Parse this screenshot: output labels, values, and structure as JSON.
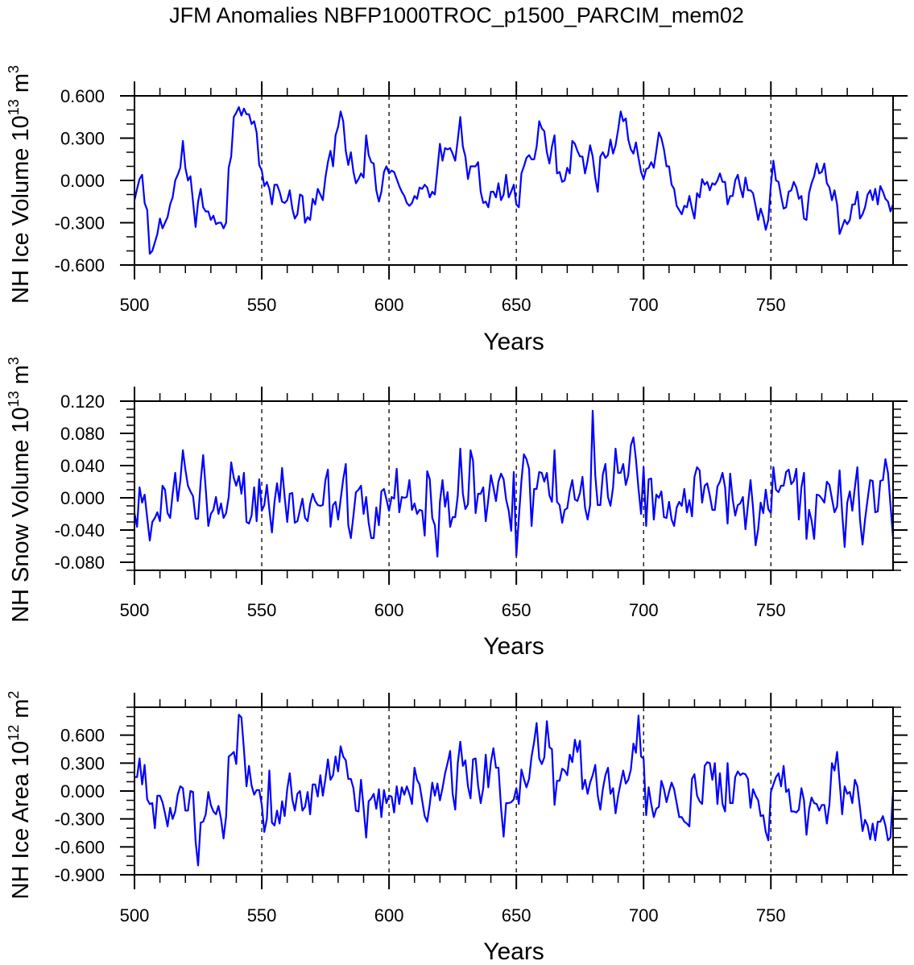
{
  "title": "JFM Anomalies NBFP1000TROC_p1500_PARCIM_mem02",
  "colors": {
    "line": "#0000ff",
    "axis": "#000000",
    "refline": "#000000"
  },
  "chart_data": [
    {
      "type": "line",
      "ylabel": {
        "text": "NH Ice Volume 10",
        "exp": "13",
        "unit": " m",
        "unit_exp": "3"
      },
      "xlabel": "Years",
      "xlim": [
        500,
        798
      ],
      "ylim": [
        -0.6,
        0.6
      ],
      "x_ticks": [
        500,
        550,
        600,
        650,
        700,
        750
      ],
      "x_tick_labels": [
        "500",
        "550",
        "600",
        "650",
        "700",
        "750"
      ],
      "y_ticks": [
        -0.6,
        -0.3,
        0.0,
        0.3,
        0.6
      ],
      "y_tick_labels": [
        "-0.600",
        "-0.300",
        "0.000",
        "0.300",
        "0.600"
      ],
      "y_minor_step": 0.1,
      "reference_lines_x": [
        550,
        600,
        650,
        700,
        750
      ],
      "x_start": 500,
      "values": [
        -0.14,
        -0.06,
        0.01,
        0.04,
        -0.16,
        -0.21,
        -0.52,
        -0.5,
        -0.44,
        -0.38,
        -0.27,
        -0.34,
        -0.3,
        -0.26,
        -0.17,
        -0.12,
        0.0,
        0.04,
        0.09,
        0.28,
        0.09,
        0.0,
        0.03,
        -0.15,
        -0.33,
        -0.15,
        -0.06,
        -0.19,
        -0.22,
        -0.22,
        -0.28,
        -0.25,
        -0.31,
        -0.3,
        -0.3,
        -0.34,
        -0.3,
        0.09,
        0.17,
        0.45,
        0.48,
        0.52,
        0.46,
        0.51,
        0.47,
        0.47,
        0.4,
        0.42,
        0.34,
        0.11,
        0.07,
        -0.04,
        -0.01,
        -0.06,
        -0.17,
        -0.03,
        -0.03,
        -0.08,
        -0.15,
        -0.16,
        -0.14,
        -0.07,
        -0.2,
        -0.27,
        -0.24,
        -0.1,
        -0.11,
        -0.3,
        -0.26,
        -0.28,
        -0.13,
        -0.17,
        -0.06,
        -0.1,
        -0.14,
        0.02,
        0.13,
        0.21,
        0.1,
        0.32,
        0.38,
        0.49,
        0.42,
        0.21,
        0.11,
        0.2,
        0.06,
        -0.02,
        0.01,
        0.05,
        0.02,
        0.32,
        0.18,
        0.13,
        0.12,
        -0.07,
        -0.15,
        -0.08,
        0.06,
        0.1,
        0.05,
        0.07,
        0.06,
        0.01,
        -0.04,
        -0.08,
        -0.11,
        -0.16,
        -0.18,
        -0.16,
        -0.11,
        -0.13,
        -0.05,
        -0.06,
        -0.03,
        -0.05,
        -0.12,
        -0.08,
        -0.1,
        0.08,
        0.26,
        0.14,
        0.23,
        0.22,
        0.23,
        0.19,
        0.14,
        0.29,
        0.45,
        0.24,
        0.17,
        0.01,
        0.1,
        0.1,
        0.1,
        0.13,
        -0.08,
        -0.16,
        -0.15,
        -0.19,
        -0.08,
        -0.08,
        -0.12,
        -0.02,
        -0.14,
        -0.1,
        0.04,
        -0.12,
        -0.08,
        -0.03,
        -0.17,
        -0.19,
        0.05,
        0.1,
        0.16,
        0.18,
        0.15,
        0.15,
        0.24,
        0.42,
        0.37,
        0.35,
        0.2,
        0.12,
        0.24,
        0.32,
        0.05,
        0.06,
        -0.01,
        0.0,
        0.09,
        0.05,
        0.28,
        0.26,
        0.21,
        0.17,
        0.17,
        0.05,
        0.14,
        0.25,
        0.17,
        0.02,
        -0.08,
        0.17,
        0.2,
        0.16,
        0.18,
        0.29,
        0.19,
        0.25,
        0.36,
        0.49,
        0.42,
        0.44,
        0.29,
        0.22,
        0.19,
        0.27,
        0.16,
        0.06,
        0.01,
        0.08,
        0.09,
        0.13,
        0.09,
        0.21,
        0.34,
        0.3,
        0.22,
        0.1,
        0.1,
        -0.03,
        -0.06,
        -0.18,
        -0.21,
        -0.24,
        -0.18,
        -0.19,
        -0.11,
        -0.2,
        -0.27,
        -0.09,
        -0.12,
        0.01,
        -0.03,
        -0.01,
        -0.07,
        -0.02,
        -0.03,
        0.0,
        0.05,
        -0.01,
        -0.01,
        -0.17,
        -0.11,
        -0.11,
        0.0,
        0.04,
        -0.05,
        -0.12,
        0.02,
        -0.07,
        -0.07,
        -0.09,
        -0.18,
        -0.28,
        -0.2,
        -0.26,
        -0.35,
        -0.28,
        -0.03,
        0.14,
        0.0,
        -0.01,
        -0.11,
        -0.2,
        -0.19,
        -0.08,
        -0.07,
        -0.01,
        -0.05,
        -0.13,
        -0.11,
        -0.27,
        -0.28,
        -0.09,
        -0.02,
        0.03,
        0.12,
        0.05,
        0.06,
        0.12,
        -0.02,
        -0.05,
        -0.14,
        -0.07,
        -0.17,
        -0.38,
        -0.33,
        -0.28,
        -0.31,
        -0.28,
        -0.17,
        -0.17,
        -0.08,
        -0.27,
        -0.24,
        -0.19,
        -0.1,
        -0.07,
        -0.14,
        -0.06,
        -0.17,
        -0.04,
        -0.08,
        -0.13,
        -0.15,
        -0.22,
        -0.17
      ]
    },
    {
      "type": "line",
      "ylabel": {
        "text": "NH Snow Volume 10",
        "exp": "13",
        "unit": " m",
        "unit_exp": "3"
      },
      "xlabel": "Years",
      "xlim": [
        500,
        798
      ],
      "ylim": [
        -0.09,
        0.12
      ],
      "x_ticks": [
        500,
        550,
        600,
        650,
        700,
        750
      ],
      "x_tick_labels": [
        "500",
        "550",
        "600",
        "650",
        "700",
        "750"
      ],
      "y_ticks": [
        -0.08,
        -0.04,
        0.0,
        0.04,
        0.08,
        0.12
      ],
      "y_tick_labels": [
        "-0.080",
        "-0.040",
        "0.000",
        "0.040",
        "0.080",
        "0.120"
      ],
      "y_minor_step": 0.01,
      "reference_lines_x": [
        550,
        600,
        650,
        700,
        750
      ],
      "x_start": 500,
      "values": [
        -0.019,
        -0.036,
        0.013,
        -0.006,
        0.004,
        -0.025,
        -0.053,
        -0.03,
        -0.025,
        -0.018,
        -0.029,
        0.015,
        0.01,
        -0.019,
        -0.025,
        0.005,
        0.031,
        -0.004,
        0.021,
        0.059,
        0.035,
        0.015,
        0.008,
        0.002,
        -0.026,
        -0.026,
        0.02,
        0.053,
        0.011,
        -0.035,
        -0.02,
        -0.015,
        0.001,
        -0.02,
        -0.007,
        -0.025,
        -0.019,
        0.001,
        0.044,
        0.025,
        0.015,
        0.027,
        0.005,
        0.031,
        -0.03,
        -0.032,
        -0.022,
        0.013,
        -0.029,
        0.023,
        -0.016,
        -0.009,
        0.016,
        -0.015,
        -0.043,
        -0.005,
        0.018,
        -0.005,
        0.037,
        0.001,
        -0.03,
        0.005,
        0.006,
        -0.031,
        -0.029,
        -0.015,
        -0.001,
        -0.025,
        -0.029,
        -0.008,
        0.005,
        -0.004,
        -0.009,
        -0.01,
        -0.009,
        0.022,
        0.035,
        -0.036,
        -0.009,
        -0.005,
        -0.027,
        -0.002,
        0.023,
        0.042,
        -0.034,
        -0.05,
        -0.022,
        0.007,
        0.01,
        0.015,
        -0.02,
        0.001,
        -0.031,
        -0.05,
        -0.05,
        -0.012,
        -0.034,
        0.008,
        0.011,
        -0.002,
        -0.016,
        0.001,
        -0.001,
        0.036,
        -0.018,
        0.001,
        0.0,
        0.001,
        0.022,
        -0.015,
        -0.007,
        -0.02,
        -0.015,
        -0.016,
        -0.047,
        0.033,
        0.023,
        -0.025,
        -0.034,
        -0.073,
        -0.005,
        0.022,
        -0.011,
        0.007,
        -0.036,
        -0.024,
        -0.024,
        0.003,
        0.061,
        0.005,
        -0.014,
        -0.008,
        0.059,
        0.046,
        -0.019,
        0.005,
        0.005,
        0.013,
        -0.029,
        -0.002,
        0.028,
        0.013,
        -0.004,
        0.02,
        0.03,
        0.023,
        -0.002,
        -0.016,
        -0.041,
        0.032,
        -0.072,
        -0.025,
        0.021,
        0.054,
        0.048,
        0.036,
        -0.035,
        0.011,
        0.011,
        0.032,
        0.031,
        0.02,
        0.031,
        0.003,
        -0.005,
        0.059,
        -0.005,
        -0.009,
        -0.031,
        -0.015,
        -0.013,
        0.008,
        0.022,
        -0.002,
        -0.004,
        0.006,
        0.026,
        -0.012,
        -0.027,
        -0.009,
        0.108,
        0.028,
        -0.009,
        -0.009,
        0.029,
        0.042,
        0.001,
        -0.01,
        0.013,
        0.061,
        0.031,
        0.031,
        0.042,
        0.016,
        0.028,
        0.065,
        0.075,
        0.048,
        0.011,
        -0.02,
        0.038,
        -0.035,
        0.023,
        0.024,
        -0.027,
        0.004,
        0.0,
        0.008,
        -0.024,
        -0.025,
        -0.005,
        -0.027,
        -0.035,
        -0.012,
        -0.005,
        -0.01,
        0.011,
        -0.018,
        -0.003,
        -0.023,
        0.026,
        0.038,
        0.034,
        -0.006,
        0.015,
        0.018,
        0.003,
        -0.015,
        -0.015,
        0.014,
        0.02,
        0.031,
        0.013,
        -0.032,
        0.03,
        -0.002,
        -0.022,
        -0.009,
        -0.007,
        0.001,
        -0.039,
        -0.009,
        0.022,
        -0.012,
        -0.059,
        -0.039,
        -0.006,
        -0.019,
        0.01,
        -0.014,
        -0.019,
        0.038,
        0.01,
        0.007,
        0.015,
        0.015,
        0.032,
        0.035,
        0.017,
        0.021,
        0.036,
        -0.027,
        0.013,
        0.031,
        -0.051,
        -0.015,
        -0.028,
        -0.051,
        0.004,
        0.003,
        -0.001,
        -0.006,
        0.02,
        0.016,
        -0.001,
        -0.018,
        -0.011,
        0.034,
        -0.019,
        -0.061,
        -0.006,
        0.008,
        -0.016,
        0.013,
        0.038,
        -0.027,
        -0.058,
        -0.027,
        -0.002,
        0.022,
        0.021,
        -0.018,
        -0.017,
        0.021,
        0.022,
        0.048,
        0.031,
        -0.009,
        -0.049
      ]
    },
    {
      "type": "line",
      "ylabel": {
        "text": "NH Ice Area 10",
        "exp": "12",
        "unit": " m",
        "unit_exp": "2"
      },
      "xlabel": "Years",
      "xlim": [
        500,
        798
      ],
      "ylim": [
        -0.9,
        0.9
      ],
      "x_ticks": [
        500,
        550,
        600,
        650,
        700,
        750
      ],
      "x_tick_labels": [
        "500",
        "550",
        "600",
        "650",
        "700",
        "750"
      ],
      "y_ticks": [
        -0.9,
        -0.6,
        -0.3,
        0.0,
        0.3,
        0.6
      ],
      "y_tick_labels": [
        "-0.900",
        "-0.600",
        "-0.300",
        "0.000",
        "0.300",
        "0.600"
      ],
      "y_minor_step": 0.1,
      "reference_lines_x": [
        550,
        600,
        650,
        700,
        750
      ],
      "x_start": 500,
      "values": [
        0.15,
        0.15,
        0.35,
        0.07,
        0.28,
        -0.09,
        -0.14,
        -0.13,
        -0.4,
        -0.05,
        -0.05,
        -0.12,
        -0.24,
        -0.38,
        -0.18,
        -0.3,
        -0.22,
        -0.04,
        0.05,
        0.03,
        -0.21,
        -0.21,
        0.0,
        -0.01,
        -0.54,
        -0.8,
        -0.34,
        -0.33,
        -0.25,
        -0.01,
        -0.15,
        -0.22,
        -0.25,
        -0.16,
        -0.3,
        -0.51,
        -0.27,
        0.37,
        0.39,
        0.42,
        0.29,
        0.82,
        0.79,
        0.45,
        0.05,
        0.27,
        0.06,
        -0.04,
        0.01,
        0.01,
        -0.15,
        -0.44,
        -0.3,
        0.22,
        -0.34,
        -0.37,
        -0.21,
        -0.35,
        -0.11,
        -0.27,
        0.02,
        0.19,
        -0.09,
        -0.21,
        -0.03,
        0.0,
        -0.21,
        -0.17,
        -0.01,
        -0.25,
        0.07,
        0.07,
        -0.06,
        0.17,
        -0.05,
        0.13,
        0.34,
        0.12,
        0.17,
        0.37,
        0.21,
        0.48,
        0.37,
        0.33,
        0.13,
        0.13,
        0.03,
        -0.21,
        -0.22,
        0.12,
        -0.18,
        -0.5,
        -0.11,
        -0.08,
        -0.03,
        -0.19,
        0.02,
        -0.28,
        0.01,
        -0.13,
        -0.05,
        -0.06,
        -0.23,
        0.05,
        -0.14,
        0.04,
        -0.04,
        0.05,
        -0.03,
        -0.14,
        0.25,
        0.12,
        0.07,
        -0.1,
        -0.27,
        -0.33,
        -0.14,
        0.09,
        -0.05,
        0.08,
        -0.1,
        0.03,
        0.19,
        0.3,
        0.43,
        -0.03,
        -0.2,
        0.3,
        0.53,
        0.27,
        0.33,
        0.05,
        -0.08,
        0.34,
        0.35,
        0.06,
        -0.13,
        0.03,
        0.39,
        0.04,
        0.31,
        0.46,
        0.25,
        0.25,
        -0.18,
        -0.49,
        -0.13,
        -0.13,
        -0.12,
        -0.09,
        0.03,
        -0.14,
        0.23,
        0.13,
        0.04,
        0.13,
        0.37,
        0.53,
        0.73,
        0.35,
        0.29,
        0.36,
        0.75,
        0.47,
        0.45,
        -0.15,
        0.11,
        0.11,
        0.24,
        0.22,
        0.17,
        0.39,
        0.31,
        0.55,
        0.42,
        0.54,
        0.02,
        0.12,
        -0.03,
        0.09,
        0.17,
        0.28,
        -0.05,
        -0.2,
        0.02,
        0.17,
        0.25,
        -0.03,
        0.03,
        -0.24,
        -0.05,
        0.09,
        0.22,
        0.08,
        0.12,
        0.23,
        0.51,
        0.41,
        0.81,
        0.37,
        0.35,
        -0.26,
        0.04,
        -0.14,
        -0.28,
        -0.19,
        -0.17,
        0.11,
        0.02,
        -0.12,
        -0.01,
        0.09,
        0.02,
        -0.13,
        -0.28,
        -0.28,
        -0.33,
        -0.35,
        -0.38,
        0.13,
        0.18,
        -0.05,
        -0.11,
        -0.14,
        0.27,
        0.31,
        0.3,
        0.12,
        0.3,
        -0.14,
        0.19,
        -0.14,
        -0.22,
        0.3,
        -0.13,
        -0.13,
        0.15,
        0.21,
        0.17,
        0.19,
        0.18,
        0.13,
        -0.18,
        0.02,
        -0.05,
        -0.1,
        -0.27,
        -0.26,
        -0.44,
        -0.53,
        -0.01,
        0.07,
        0.15,
        0.19,
        0.05,
        0.27,
        -0.01,
        0.02,
        -0.22,
        -0.22,
        -0.23,
        -0.2,
        0.03,
        -0.1,
        -0.47,
        -0.2,
        -0.07,
        -0.13,
        -0.14,
        -0.21,
        -0.15,
        -0.15,
        -0.35,
        -0.14,
        0.3,
        0.22,
        0.42,
        0.1,
        -0.25,
        0.05,
        -0.03,
        -0.01,
        -0.13,
        0.12,
        0.05,
        -0.18,
        -0.43,
        -0.31,
        -0.37,
        -0.52,
        -0.35,
        -0.53,
        -0.33,
        -0.33,
        -0.27,
        -0.37,
        -0.53,
        -0.5,
        0.0
      ]
    }
  ]
}
